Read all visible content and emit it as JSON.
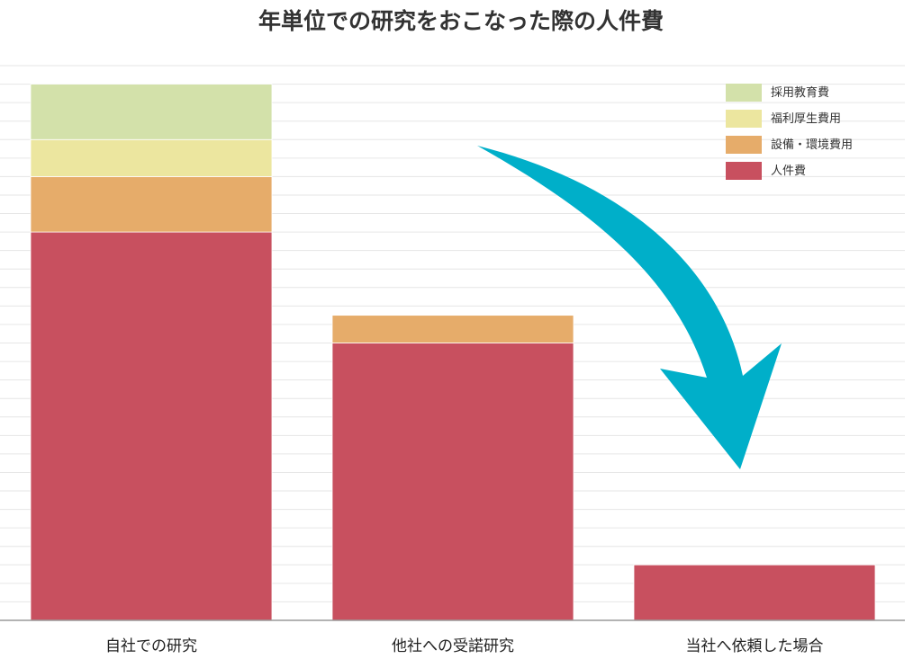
{
  "chart_data": {
    "type": "bar",
    "stacked": true,
    "title": "年単位での研究をおこなった際の人件費",
    "xlabel": "",
    "ylabel": "",
    "categories": [
      "自社での研究",
      "他社への受諾研究",
      "当社へ依頼した場合"
    ],
    "series": [
      {
        "name": "人件費",
        "color": "#c8505f",
        "values": [
          10.5,
          7.5,
          1.5
        ]
      },
      {
        "name": "設備・環境費用",
        "color": "#e6ac6a",
        "values": [
          1.5,
          0.75,
          0
        ]
      },
      {
        "name": "福利厚生費用",
        "color": "#ece69f",
        "values": [
          1.0,
          0,
          0
        ]
      },
      {
        "name": "採用教育費",
        "color": "#d3e1aa",
        "values": [
          1.5,
          0,
          0
        ]
      }
    ],
    "ylim": [
      0,
      15
    ],
    "grid": true,
    "y_tick_labels_shown": false,
    "legend_position": "top-right",
    "legend_order": [
      "採用教育費",
      "福利厚生費用",
      "設備・環境費用",
      "人件費"
    ],
    "annotation": {
      "type": "curved-arrow",
      "direction": "down-right",
      "color": "#00afc9"
    }
  }
}
